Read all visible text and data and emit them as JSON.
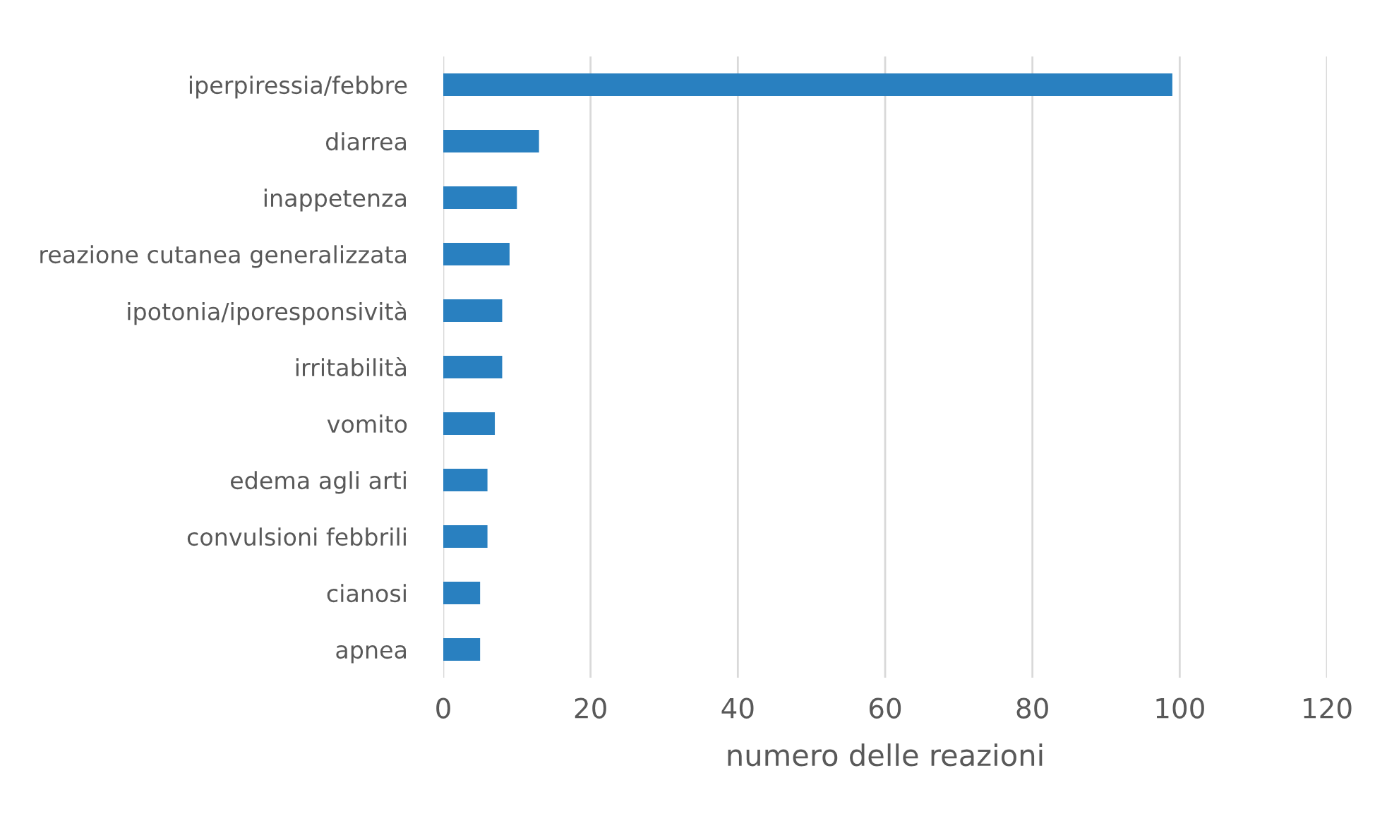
{
  "chart_data": {
    "type": "bar",
    "orientation": "horizontal",
    "xlabel": "numero delle reazioni",
    "categories": [
      "iperpiressia/febbre",
      "diarrea",
      "inappetenza",
      "reazione cutanea generalizzata",
      "ipotonia/iporesponsività",
      "irritabilità",
      "vomito",
      "edema agli arti",
      "convulsioni febbrili",
      "cianosi",
      "apnea"
    ],
    "values": [
      99,
      13,
      10,
      9,
      8,
      8,
      7,
      6,
      6,
      5,
      5
    ],
    "color": "#2980c0",
    "xlim": [
      0,
      120
    ],
    "xticks": [
      0,
      20,
      40,
      60,
      80,
      100,
      120
    ],
    "grid": "x",
    "legend": false
  }
}
